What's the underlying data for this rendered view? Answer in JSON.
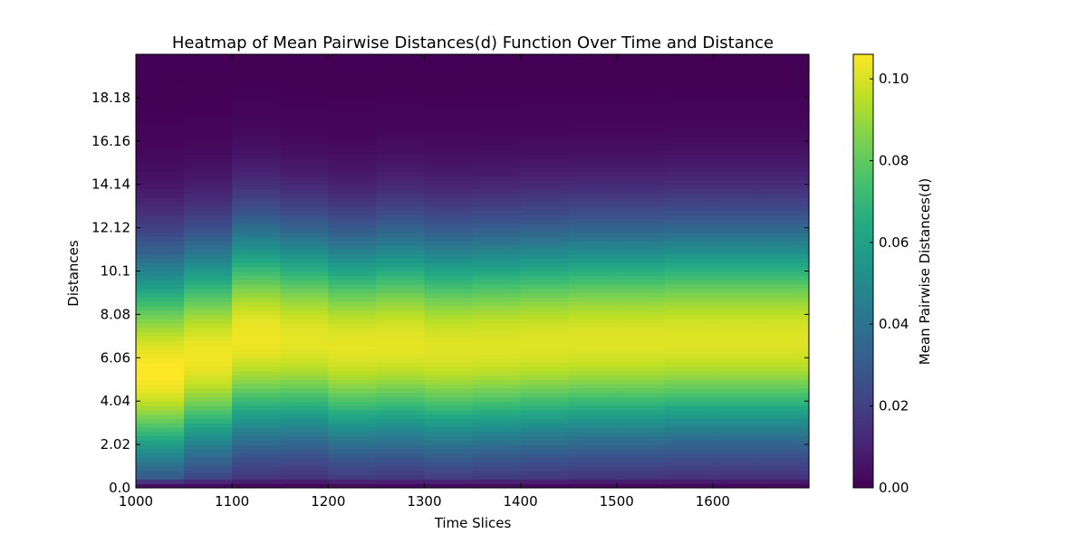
{
  "chart_data": {
    "type": "heatmap",
    "title": "Heatmap of Mean Pairwise Distances(d) Function Over Time and Distance",
    "xlabel": "Time Slices",
    "ylabel": "Distances",
    "colorbar_label": "Mean Pairwise Distances(d)",
    "colormap": "viridis",
    "x_range": [
      1000,
      1700
    ],
    "y_range": [
      0.0,
      20.2
    ],
    "color_range": [
      0.0,
      0.106
    ],
    "x_ticks": [
      "1000",
      "1100",
      "1200",
      "1300",
      "1400",
      "1500",
      "1600"
    ],
    "y_ticks": [
      "0.0",
      "2.02",
      "4.04",
      "6.06",
      "8.08",
      "10.1",
      "12.12",
      "14.14",
      "16.16",
      "18.18"
    ],
    "colorbar_ticks": [
      "0.00",
      "0.02",
      "0.04",
      "0.06",
      "0.08",
      "0.10"
    ],
    "time_slices": [
      1000,
      1050,
      1100,
      1150,
      1200,
      1250,
      1300,
      1350,
      1400,
      1450,
      1500,
      1550,
      1600,
      1650
    ],
    "distance_step": 0.202,
    "profiles": [
      {
        "peak_distance": 5.4,
        "peak_value": 0.106,
        "width_inner": 3.1,
        "width_outer": 3.7
      },
      {
        "peak_distance": 6.1,
        "peak_value": 0.104,
        "width_inner": 3.2,
        "width_outer": 3.6
      },
      {
        "peak_distance": 7.0,
        "peak_value": 0.104,
        "width_inner": 3.4,
        "width_outer": 3.6
      },
      {
        "peak_distance": 6.9,
        "peak_value": 0.102,
        "width_inner": 3.3,
        "width_outer": 3.5
      },
      {
        "peak_distance": 6.6,
        "peak_value": 0.102,
        "width_inner": 3.3,
        "width_outer": 3.5
      },
      {
        "peak_distance": 6.7,
        "peak_value": 0.102,
        "width_inner": 3.3,
        "width_outer": 3.6
      },
      {
        "peak_distance": 6.5,
        "peak_value": 0.101,
        "width_inner": 3.3,
        "width_outer": 3.6
      },
      {
        "peak_distance": 6.6,
        "peak_value": 0.101,
        "width_inner": 3.3,
        "width_outer": 3.6
      },
      {
        "peak_distance": 6.7,
        "peak_value": 0.101,
        "width_inner": 3.3,
        "width_outer": 3.6
      },
      {
        "peak_distance": 6.8,
        "peak_value": 0.101,
        "width_inner": 3.3,
        "width_outer": 3.6
      },
      {
        "peak_distance": 6.8,
        "peak_value": 0.101,
        "width_inner": 3.3,
        "width_outer": 3.6
      },
      {
        "peak_distance": 6.9,
        "peak_value": 0.101,
        "width_inner": 3.3,
        "width_outer": 3.6
      },
      {
        "peak_distance": 6.9,
        "peak_value": 0.101,
        "width_inner": 3.3,
        "width_outer": 3.6
      },
      {
        "peak_distance": 6.9,
        "peak_value": 0.101,
        "width_inner": 3.3,
        "width_outer": 3.6
      }
    ]
  }
}
